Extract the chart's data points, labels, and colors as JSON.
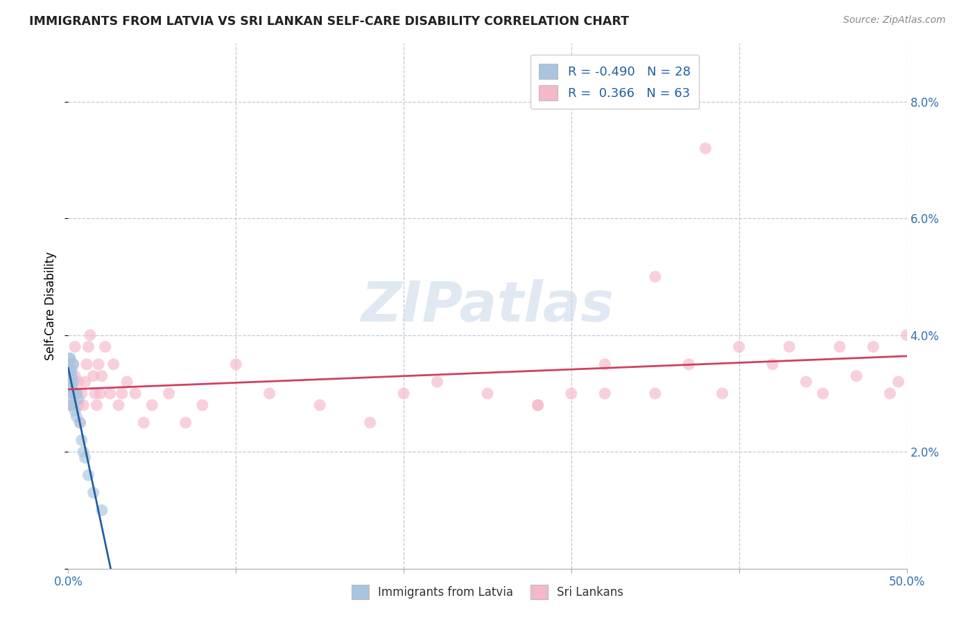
{
  "title": "IMMIGRANTS FROM LATVIA VS SRI LANKAN SELF-CARE DISABILITY CORRELATION CHART",
  "source": "Source: ZipAtlas.com",
  "ylabel_label": "Self-Care Disability",
  "xlim": [
    0.0,
    0.5
  ],
  "ylim": [
    0.0,
    0.09
  ],
  "xticks": [
    0.0,
    0.1,
    0.2,
    0.3,
    0.4,
    0.5
  ],
  "xtick_labels": [
    "0.0%",
    "",
    "",
    "",
    "",
    "50.0%"
  ],
  "yticks": [
    0.0,
    0.02,
    0.04,
    0.06,
    0.08
  ],
  "ytick_labels_right": [
    "",
    "2.0%",
    "4.0%",
    "6.0%",
    "8.0%"
  ],
  "legend_r1": "-0.490",
  "legend_n1": "28",
  "legend_r2": "0.366",
  "legend_n2": "63",
  "color_latvia": "#a8c4e0",
  "color_srilanka": "#f5b8c8",
  "line_color_latvia": "#2060a0",
  "line_color_srilanka": "#d04060",
  "scatter_alpha": 0.65,
  "watermark": "ZIPatlas",
  "latvia_x": [
    0.0,
    0.0,
    0.001,
    0.001,
    0.001,
    0.001,
    0.001,
    0.001,
    0.002,
    0.002,
    0.002,
    0.002,
    0.003,
    0.003,
    0.003,
    0.003,
    0.004,
    0.004,
    0.005,
    0.005,
    0.006,
    0.007,
    0.008,
    0.009,
    0.01,
    0.012,
    0.015,
    0.02
  ],
  "latvia_y": [
    0.035,
    0.033,
    0.036,
    0.034,
    0.032,
    0.03,
    0.028,
    0.036,
    0.034,
    0.03,
    0.033,
    0.031,
    0.03,
    0.028,
    0.032,
    0.035,
    0.027,
    0.03,
    0.026,
    0.03,
    0.029,
    0.025,
    0.022,
    0.02,
    0.019,
    0.016,
    0.013,
    0.01
  ],
  "srilanka_x": [
    0.001,
    0.002,
    0.002,
    0.003,
    0.003,
    0.004,
    0.004,
    0.005,
    0.006,
    0.006,
    0.007,
    0.008,
    0.009,
    0.01,
    0.011,
    0.012,
    0.013,
    0.015,
    0.016,
    0.017,
    0.018,
    0.019,
    0.02,
    0.022,
    0.025,
    0.027,
    0.03,
    0.032,
    0.035,
    0.04,
    0.045,
    0.05,
    0.06,
    0.07,
    0.08,
    0.1,
    0.12,
    0.15,
    0.18,
    0.2,
    0.22,
    0.25,
    0.28,
    0.3,
    0.32,
    0.35,
    0.37,
    0.39,
    0.4,
    0.42,
    0.43,
    0.44,
    0.45,
    0.46,
    0.47,
    0.48,
    0.49,
    0.495,
    0.5,
    0.35,
    0.28,
    0.32,
    0.38
  ],
  "srilanka_y": [
    0.028,
    0.032,
    0.028,
    0.03,
    0.035,
    0.033,
    0.038,
    0.03,
    0.032,
    0.028,
    0.025,
    0.03,
    0.028,
    0.032,
    0.035,
    0.038,
    0.04,
    0.033,
    0.03,
    0.028,
    0.035,
    0.03,
    0.033,
    0.038,
    0.03,
    0.035,
    0.028,
    0.03,
    0.032,
    0.03,
    0.025,
    0.028,
    0.03,
    0.025,
    0.028,
    0.035,
    0.03,
    0.028,
    0.025,
    0.03,
    0.032,
    0.03,
    0.028,
    0.03,
    0.035,
    0.03,
    0.035,
    0.03,
    0.038,
    0.035,
    0.038,
    0.032,
    0.03,
    0.038,
    0.033,
    0.038,
    0.03,
    0.032,
    0.04,
    0.05,
    0.028,
    0.03,
    0.072
  ]
}
